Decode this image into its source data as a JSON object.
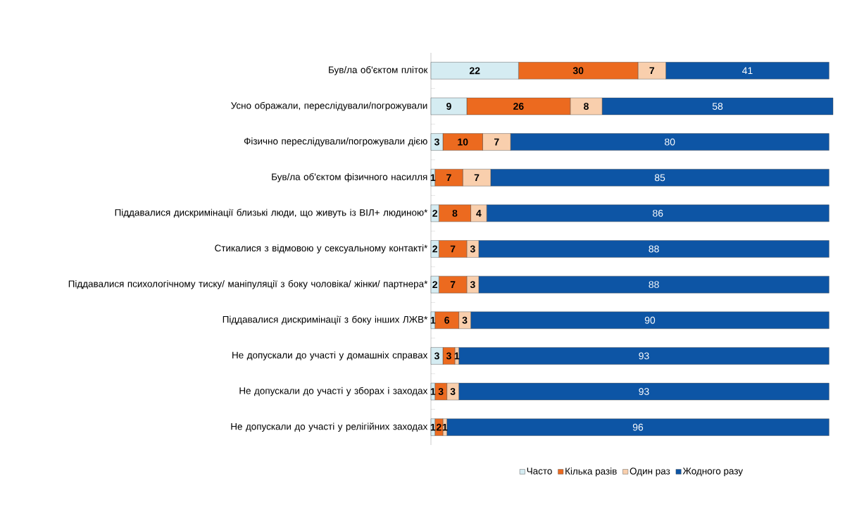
{
  "chart_data": {
    "type": "bar",
    "orientation": "horizontal",
    "stacked": true,
    "data_labels": true,
    "legend": "bottom",
    "categories": [
      "Був/ла об'єктом пліток",
      "Усно ображали, переслідували/погрожували",
      "Фізично переслідували/погрожували дією",
      "Був/ла об'єктом фізичного насилля",
      "Піддавалися дискримінації близькі люди, що живуть із ВІЛ+ людиною*",
      "Стикалися з відмовою у сексуальному контакті*",
      "Піддавалися психологічному тиску/ маніпуляції з боку чоловіка/ жінки/ партнера*",
      "Піддавалися дискримінації з боку  інших ЛЖВ*",
      "Не допускали до участі у домашніх справах",
      "Не допускали до участі у зборах і заходах",
      "Не допускали до участі у релігійних заходах"
    ],
    "series": [
      {
        "name": "Часто",
        "color": "#d5ecf2",
        "values": [
          22,
          9,
          3,
          1,
          2,
          2,
          2,
          1,
          3,
          1,
          1
        ]
      },
      {
        "name": "Кілька разів",
        "color": "#ec6a1f",
        "values": [
          30,
          26,
          10,
          7,
          8,
          7,
          7,
          6,
          3,
          3,
          2
        ]
      },
      {
        "name": "Один раз",
        "color": "#f9cfad",
        "values": [
          7,
          8,
          7,
          7,
          4,
          3,
          3,
          3,
          1,
          3,
          1
        ]
      },
      {
        "name": "Жодного разу",
        "color": "#0d55a5",
        "values": [
          41,
          58,
          80,
          85,
          86,
          88,
          88,
          90,
          93,
          93,
          96
        ]
      }
    ]
  }
}
